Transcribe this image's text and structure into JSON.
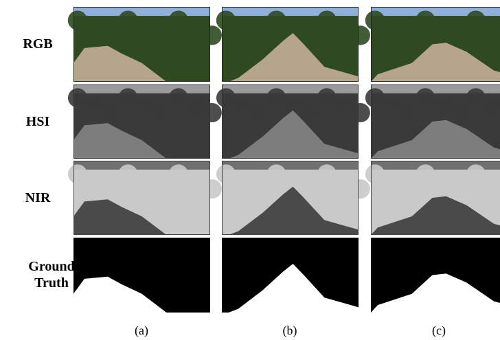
{
  "row_labels": [
    "RGB",
    "HSI",
    "NIR",
    "Ground Truth"
  ],
  "column_labels": [
    "(a)",
    "(b)",
    "(c)"
  ]
}
